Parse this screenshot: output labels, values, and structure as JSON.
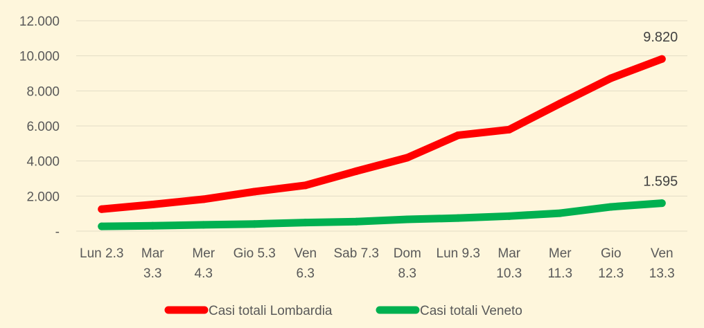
{
  "chart_data": {
    "type": "line",
    "categories": [
      [
        "Lun 2.3"
      ],
      [
        "Mar",
        "3.3"
      ],
      [
        "Mer",
        "4.3"
      ],
      [
        "Gio 5.3"
      ],
      [
        "Ven",
        "6.3"
      ],
      [
        "Sab 7.3"
      ],
      [
        "Dom",
        "8.3"
      ],
      [
        "Lun 9.3"
      ],
      [
        "Mar",
        "10.3"
      ],
      [
        "Mer",
        "11.3"
      ],
      [
        "Gio",
        "12.3"
      ],
      [
        "Ven",
        "13.3"
      ]
    ],
    "series": [
      {
        "name": "Casi totali Lombardia",
        "color": "#ff0000",
        "values": [
          1254,
          1520,
          1820,
          2251,
          2612,
          3420,
          4189,
          5469,
          5791,
          7280,
          8725,
          9820
        ],
        "end_label": "9.820"
      },
      {
        "name": "Casi totali Veneto",
        "color": "#00b050",
        "values": [
          273,
          307,
          360,
          407,
          488,
          543,
          670,
          744,
          856,
          1023,
          1384,
          1595
        ],
        "end_label": "1.595"
      }
    ],
    "y_ticks": [
      {
        "value": 0,
        "label": "-"
      },
      {
        "value": 2000,
        "label": "2.000"
      },
      {
        "value": 4000,
        "label": "4.000"
      },
      {
        "value": 6000,
        "label": "6.000"
      },
      {
        "value": 8000,
        "label": "8.000"
      },
      {
        "value": 10000,
        "label": "10.000"
      },
      {
        "value": 12000,
        "label": "12.000"
      }
    ],
    "ylim": [
      0,
      12000
    ],
    "grid": true,
    "legend_position": "bottom"
  }
}
